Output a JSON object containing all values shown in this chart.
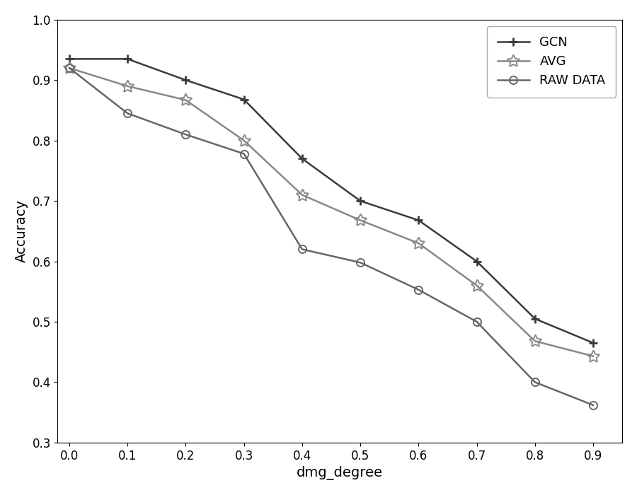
{
  "x": [
    0.0,
    0.1,
    0.2,
    0.3,
    0.4,
    0.5,
    0.6,
    0.7,
    0.8,
    0.9
  ],
  "gcn": [
    0.935,
    0.935,
    0.9,
    0.868,
    0.77,
    0.7,
    0.668,
    0.6,
    0.505,
    0.465
  ],
  "avg": [
    0.92,
    0.89,
    0.867,
    0.8,
    0.71,
    0.668,
    0.63,
    0.56,
    0.468,
    0.443
  ],
  "raw": [
    0.92,
    0.845,
    0.81,
    0.778,
    0.62,
    0.598,
    0.553,
    0.5,
    0.4,
    0.362
  ],
  "gcn_color": "#3a3a3a",
  "avg_color": "#888888",
  "raw_color": "#666666",
  "xlabel": "dmg_degree",
  "ylabel": "Accuracy",
  "ylim": [
    0.3,
    1.0
  ],
  "xlim": [
    -0.02,
    0.95
  ],
  "legend_labels": [
    "GCN",
    "AVG",
    "RAW DATA"
  ],
  "linewidth": 1.8,
  "markersize_plus": 9,
  "markersize_star": 13,
  "markersize_circle": 8,
  "tick_labelsize": 12,
  "axis_labelsize": 14,
  "legend_fontsize": 13,
  "figure_width": 9.0,
  "figure_height": 7.0,
  "dpi": 100
}
